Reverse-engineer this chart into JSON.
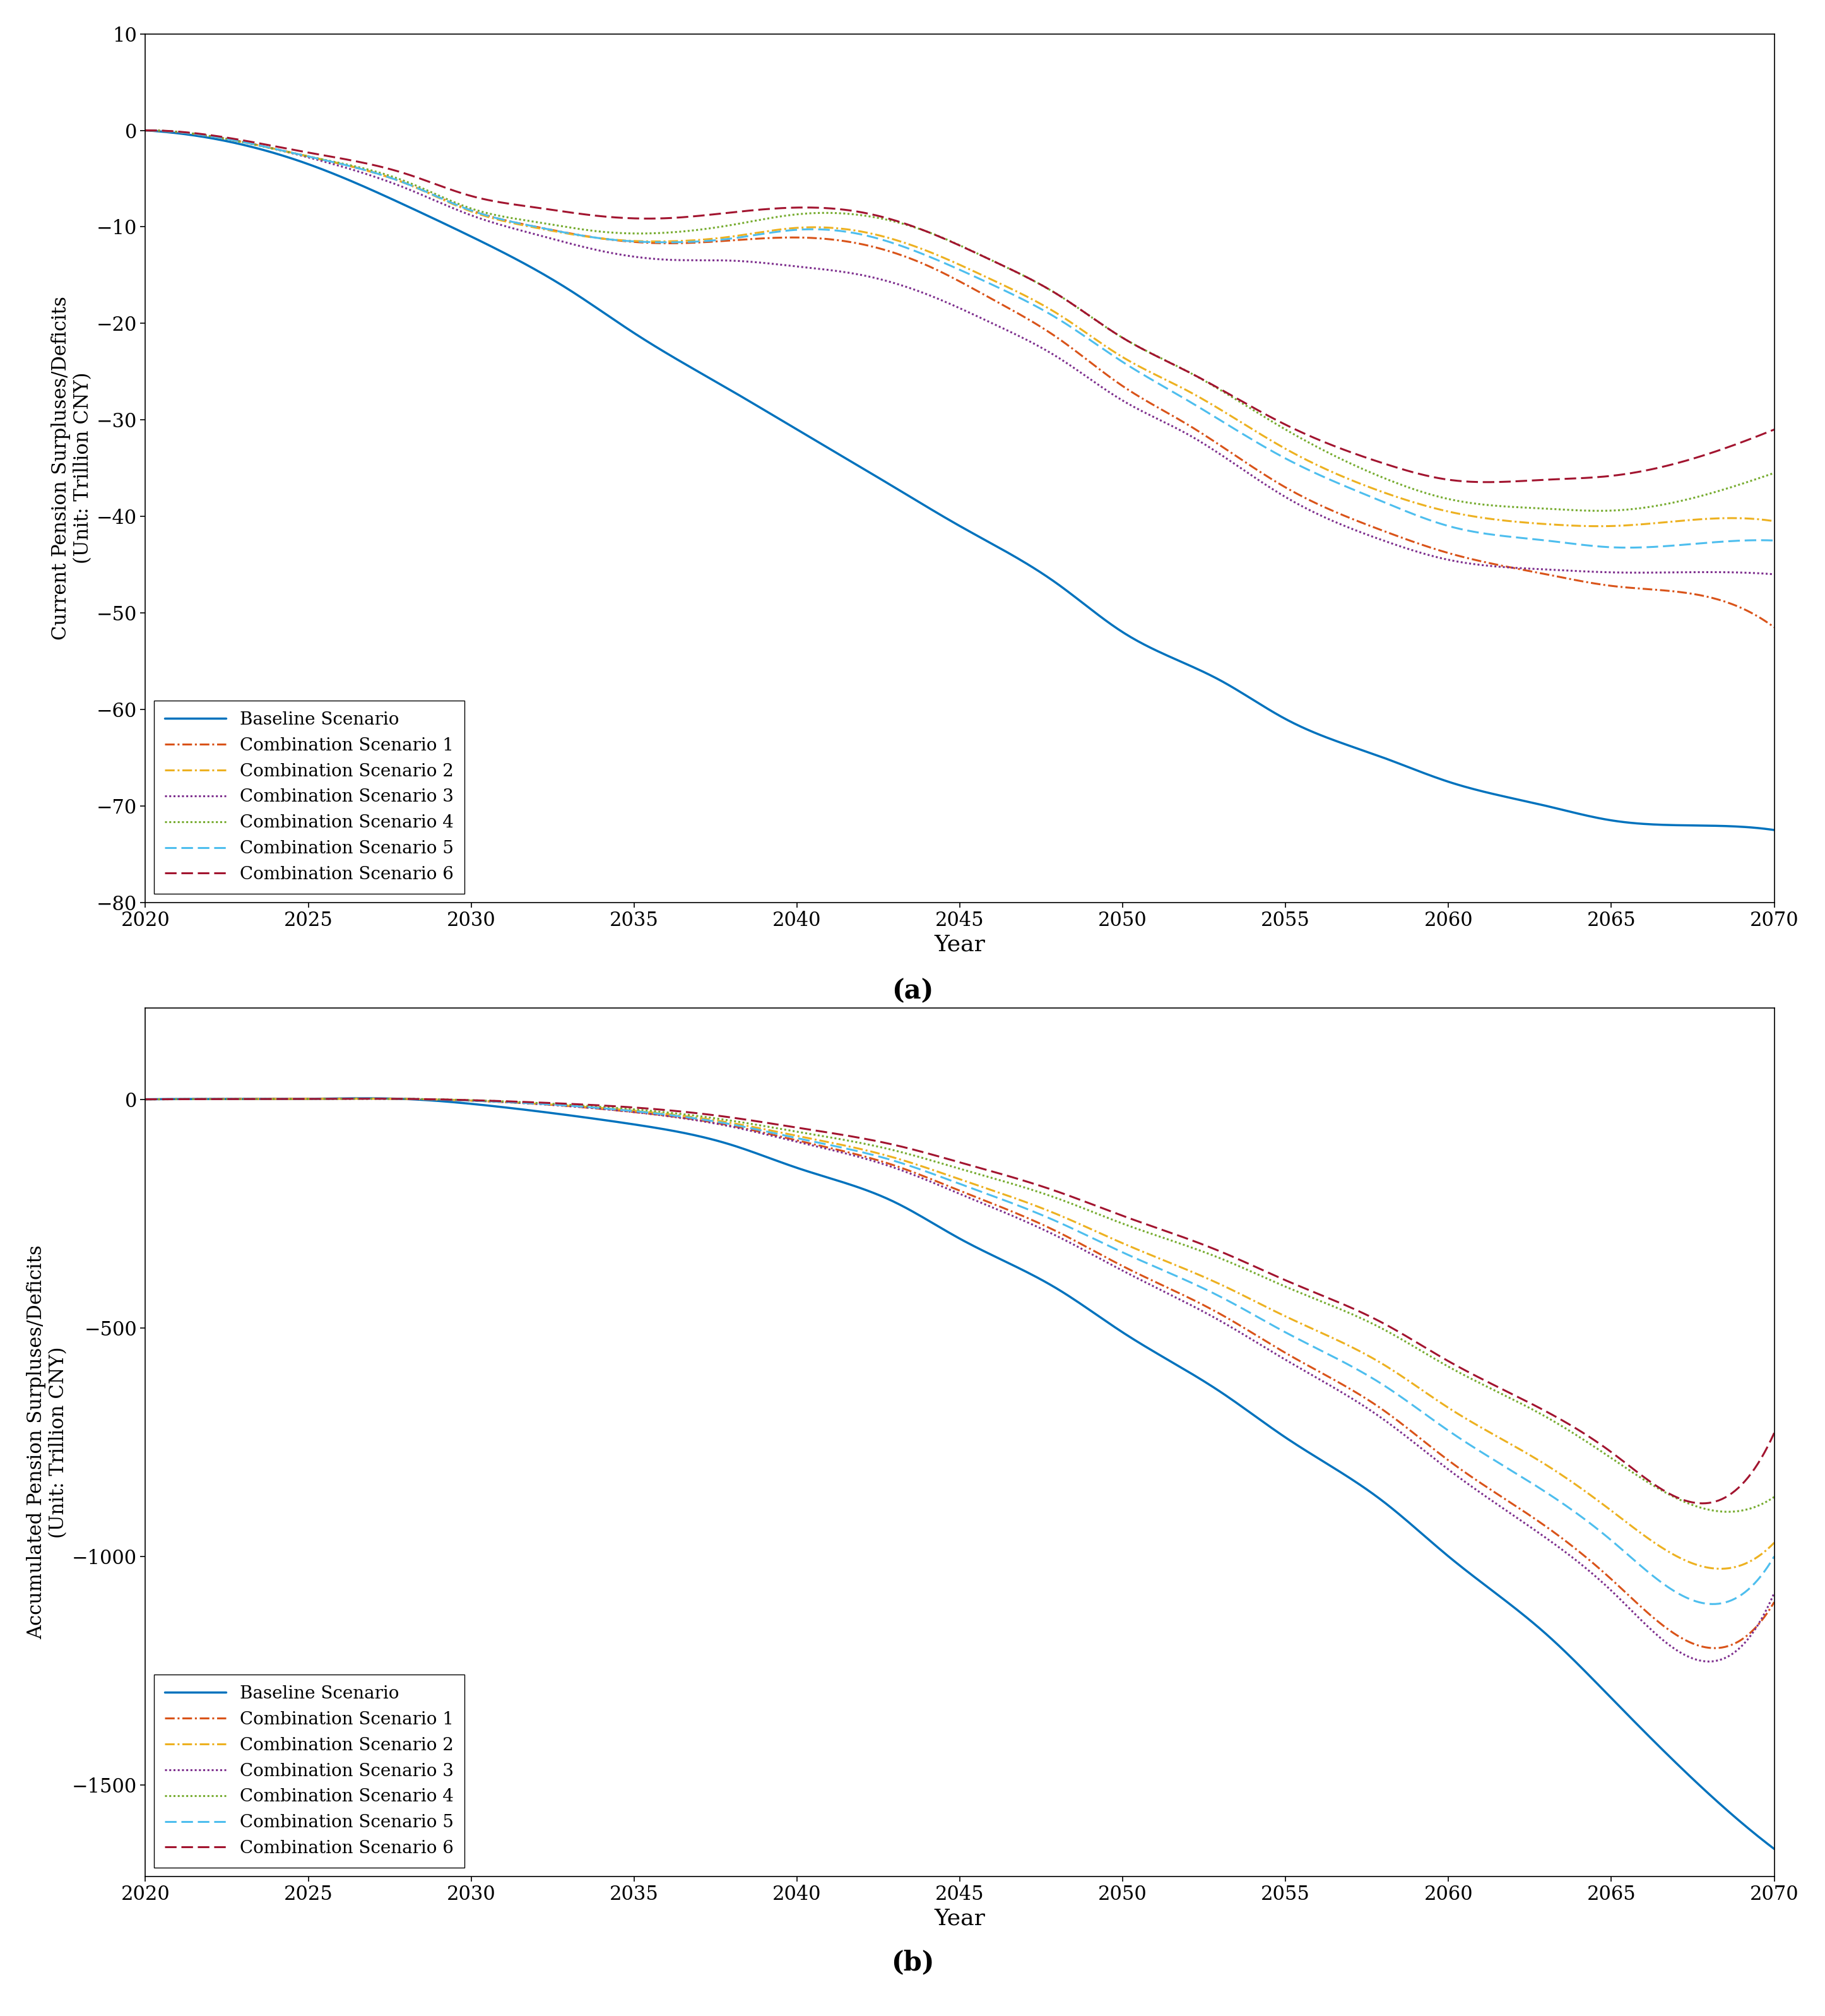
{
  "xlim": [
    2020,
    2070
  ],
  "ylim_a": [
    -80,
    10
  ],
  "ylim_b": [
    -1700,
    200
  ],
  "xticks": [
    2020,
    2025,
    2030,
    2035,
    2040,
    2045,
    2050,
    2055,
    2060,
    2065,
    2070
  ],
  "yticks_a": [
    -80,
    -70,
    -60,
    -50,
    -40,
    -30,
    -20,
    -10,
    0,
    10
  ],
  "yticks_b": [
    -1500,
    -1000,
    -500,
    0
  ],
  "xlabel": "Year",
  "ylabel_a": "Current Pension Surpluses/Deficits\n(Unit: Trillion CNY)",
  "ylabel_b": "Accumulated Pension Surpluses/Deficits\n(Unit: Trillion CNY)",
  "label_a": "(a)",
  "label_b": "(b)",
  "scenarios": [
    "Baseline Scenario",
    "Combination Scenario 1",
    "Combination Scenario 2",
    "Combination Scenario 3",
    "Combination Scenario 4",
    "Combination Scenario 5",
    "Combination Scenario 6"
  ],
  "colors": [
    "#0072BD",
    "#D95319",
    "#EDB120",
    "#7E2F8E",
    "#77AC30",
    "#4DBEEE",
    "#A2142F"
  ],
  "linestyles": [
    "solid",
    "dashdot",
    "dashdot",
    "dotted",
    "dotted",
    "dashed",
    "dashed"
  ],
  "background_color": "#ffffff",
  "kx_bl_a": [
    2020,
    2022,
    2025,
    2028,
    2030,
    2033,
    2035,
    2038,
    2040,
    2043,
    2045,
    2048,
    2050,
    2053,
    2055,
    2058,
    2060,
    2063,
    2065,
    2067,
    2070
  ],
  "ky_bl_a": [
    0,
    -0.8,
    -3.5,
    -7.8,
    -11,
    -16.5,
    -21,
    -27,
    -31,
    -37,
    -41,
    -47,
    -52,
    -57,
    -61,
    -65,
    -67.5,
    -70,
    -71.5,
    -72,
    -72.5
  ],
  "kx_sc1_a": [
    2020,
    2022,
    2025,
    2028,
    2030,
    2032,
    2034,
    2036,
    2038,
    2040,
    2042,
    2044,
    2046,
    2048,
    2050,
    2052,
    2055,
    2058,
    2060,
    2063,
    2065,
    2067,
    2070
  ],
  "ky_sc1_a": [
    0,
    -0.6,
    -2.7,
    -5.5,
    -8.3,
    -10.0,
    -11.2,
    -11.7,
    -11.4,
    -11.1,
    -11.8,
    -14.0,
    -17.5,
    -21.5,
    -26.5,
    -30.5,
    -37.0,
    -41.5,
    -43.8,
    -46.0,
    -47.2,
    -47.8,
    -51.5
  ],
  "kx_sc2_a": [
    2020,
    2022,
    2025,
    2028,
    2030,
    2032,
    2034,
    2036,
    2038,
    2040,
    2042,
    2044,
    2046,
    2048,
    2050,
    2052,
    2055,
    2058,
    2060,
    2063,
    2065,
    2067,
    2070
  ],
  "ky_sc2_a": [
    0,
    -0.6,
    -2.7,
    -5.5,
    -8.4,
    -10.1,
    -11.2,
    -11.5,
    -11.0,
    -10.1,
    -10.5,
    -12.5,
    -15.5,
    -19.0,
    -23.5,
    -27.0,
    -33.0,
    -37.5,
    -39.5,
    -40.8,
    -41.0,
    -40.5,
    -40.5
  ],
  "kx_sc3_a": [
    2020,
    2022,
    2025,
    2028,
    2030,
    2032,
    2034,
    2036,
    2038,
    2040,
    2042,
    2044,
    2046,
    2048,
    2050,
    2052,
    2055,
    2058,
    2060,
    2063,
    2065,
    2067,
    2070
  ],
  "ky_sc3_a": [
    0,
    -0.6,
    -2.8,
    -6.0,
    -8.8,
    -10.8,
    -12.5,
    -13.4,
    -13.5,
    -14.1,
    -15.0,
    -17.0,
    -20.0,
    -23.5,
    -28.0,
    -31.5,
    -38.0,
    -42.5,
    -44.5,
    -45.5,
    -45.8,
    -45.8,
    -46.0
  ],
  "kx_sc4_a": [
    2020,
    2022,
    2025,
    2028,
    2030,
    2032,
    2034,
    2036,
    2038,
    2040,
    2042,
    2044,
    2046,
    2048,
    2050,
    2052,
    2055,
    2058,
    2060,
    2063,
    2065,
    2067,
    2070
  ],
  "ky_sc4_a": [
    0,
    -0.6,
    -2.7,
    -5.3,
    -8.1,
    -9.5,
    -10.5,
    -10.6,
    -9.8,
    -8.7,
    -8.8,
    -10.5,
    -13.5,
    -17.0,
    -21.5,
    -25.0,
    -31.0,
    -36.0,
    -38.2,
    -39.2,
    -39.4,
    -38.5,
    -35.5
  ],
  "kx_sc5_a": [
    2020,
    2022,
    2025,
    2028,
    2030,
    2032,
    2034,
    2036,
    2038,
    2040,
    2042,
    2044,
    2046,
    2048,
    2050,
    2052,
    2055,
    2058,
    2060,
    2063,
    2065,
    2067,
    2070
  ],
  "ky_sc5_a": [
    0,
    -0.6,
    -2.7,
    -5.5,
    -8.3,
    -10.0,
    -11.2,
    -11.6,
    -11.2,
    -10.3,
    -10.8,
    -13.0,
    -16.0,
    -19.5,
    -24.0,
    -28.0,
    -34.0,
    -38.5,
    -41.0,
    -42.5,
    -43.2,
    -43.0,
    -42.5
  ],
  "kx_sc6_a": [
    2020,
    2022,
    2025,
    2028,
    2030,
    2032,
    2034,
    2036,
    2038,
    2040,
    2042,
    2044,
    2046,
    2048,
    2050,
    2052,
    2055,
    2058,
    2060,
    2063,
    2065,
    2067,
    2070
  ],
  "ky_sc6_a": [
    0,
    -0.5,
    -2.3,
    -4.5,
    -6.8,
    -8.0,
    -8.9,
    -9.1,
    -8.5,
    -8.0,
    -8.5,
    -10.5,
    -13.5,
    -17.0,
    -21.5,
    -25.0,
    -30.5,
    -34.5,
    -36.2,
    -36.2,
    -35.8,
    -34.5,
    -31.0
  ],
  "kx_bl_b": [
    2020,
    2023,
    2025,
    2028,
    2030,
    2033,
    2035,
    2038,
    2040,
    2043,
    2045,
    2048,
    2050,
    2053,
    2055,
    2058,
    2060,
    2063,
    2065,
    2068,
    2070
  ],
  "ky_bl_b": [
    0,
    0.5,
    1.0,
    0.5,
    -10,
    -35,
    -55,
    -100,
    -150,
    -225,
    -305,
    -415,
    -510,
    -640,
    -740,
    -880,
    -1000,
    -1170,
    -1310,
    -1520,
    -1640
  ],
  "kx_sc1_b": [
    2020,
    2023,
    2025,
    2028,
    2030,
    2033,
    2035,
    2038,
    2040,
    2043,
    2045,
    2048,
    2050,
    2053,
    2055,
    2058,
    2060,
    2063,
    2065,
    2068,
    2070
  ],
  "ky_sc1_b": [
    0,
    0.5,
    1.0,
    0.8,
    -3,
    -15,
    -28,
    -58,
    -90,
    -145,
    -200,
    -290,
    -365,
    -470,
    -555,
    -680,
    -790,
    -935,
    -1050,
    -1200,
    -1100
  ],
  "kx_sc2_b": [
    2020,
    2023,
    2025,
    2028,
    2030,
    2033,
    2035,
    2038,
    2040,
    2043,
    2045,
    2048,
    2050,
    2053,
    2055,
    2058,
    2060,
    2063,
    2065,
    2068,
    2070
  ],
  "ky_sc2_b": [
    0,
    0.5,
    1.0,
    0.8,
    -3,
    -14,
    -25,
    -52,
    -80,
    -128,
    -175,
    -252,
    -315,
    -405,
    -475,
    -580,
    -675,
    -800,
    -900,
    -1025,
    -970
  ],
  "kx_sc3_b": [
    2020,
    2023,
    2025,
    2028,
    2030,
    2033,
    2035,
    2038,
    2040,
    2043,
    2045,
    2048,
    2050,
    2053,
    2055,
    2058,
    2060,
    2063,
    2065,
    2068,
    2070
  ],
  "ky_sc3_b": [
    0,
    0.5,
    1.0,
    0.8,
    -3,
    -15,
    -28,
    -60,
    -93,
    -150,
    -207,
    -300,
    -375,
    -485,
    -570,
    -700,
    -810,
    -960,
    -1075,
    -1230,
    -1080
  ],
  "kx_sc4_b": [
    2020,
    2023,
    2025,
    2028,
    2030,
    2033,
    2035,
    2038,
    2040,
    2043,
    2045,
    2048,
    2050,
    2053,
    2055,
    2058,
    2060,
    2063,
    2065,
    2068,
    2070
  ],
  "ky_sc4_b": [
    0,
    0.5,
    1.0,
    0.8,
    -2,
    -12,
    -22,
    -47,
    -71,
    -112,
    -152,
    -217,
    -272,
    -348,
    -410,
    -503,
    -585,
    -695,
    -785,
    -898,
    -870
  ],
  "kx_sc5_b": [
    2020,
    2023,
    2025,
    2028,
    2030,
    2033,
    2035,
    2038,
    2040,
    2043,
    2045,
    2048,
    2050,
    2053,
    2055,
    2058,
    2060,
    2063,
    2065,
    2068,
    2070
  ],
  "ky_sc5_b": [
    0,
    0.5,
    1.0,
    0.8,
    -3,
    -14,
    -26,
    -55,
    -85,
    -135,
    -185,
    -268,
    -335,
    -432,
    -510,
    -625,
    -725,
    -860,
    -965,
    -1104,
    -1000
  ],
  "kx_sc6_b": [
    2020,
    2023,
    2025,
    2028,
    2030,
    2033,
    2035,
    2038,
    2040,
    2043,
    2045,
    2048,
    2050,
    2053,
    2055,
    2058,
    2060,
    2063,
    2065,
    2068,
    2070
  ],
  "ky_sc6_b": [
    0,
    0.5,
    1.0,
    0.8,
    -2,
    -10,
    -18,
    -40,
    -62,
    -100,
    -138,
    -202,
    -255,
    -333,
    -396,
    -490,
    -573,
    -683,
    -772,
    -883,
    -730
  ]
}
